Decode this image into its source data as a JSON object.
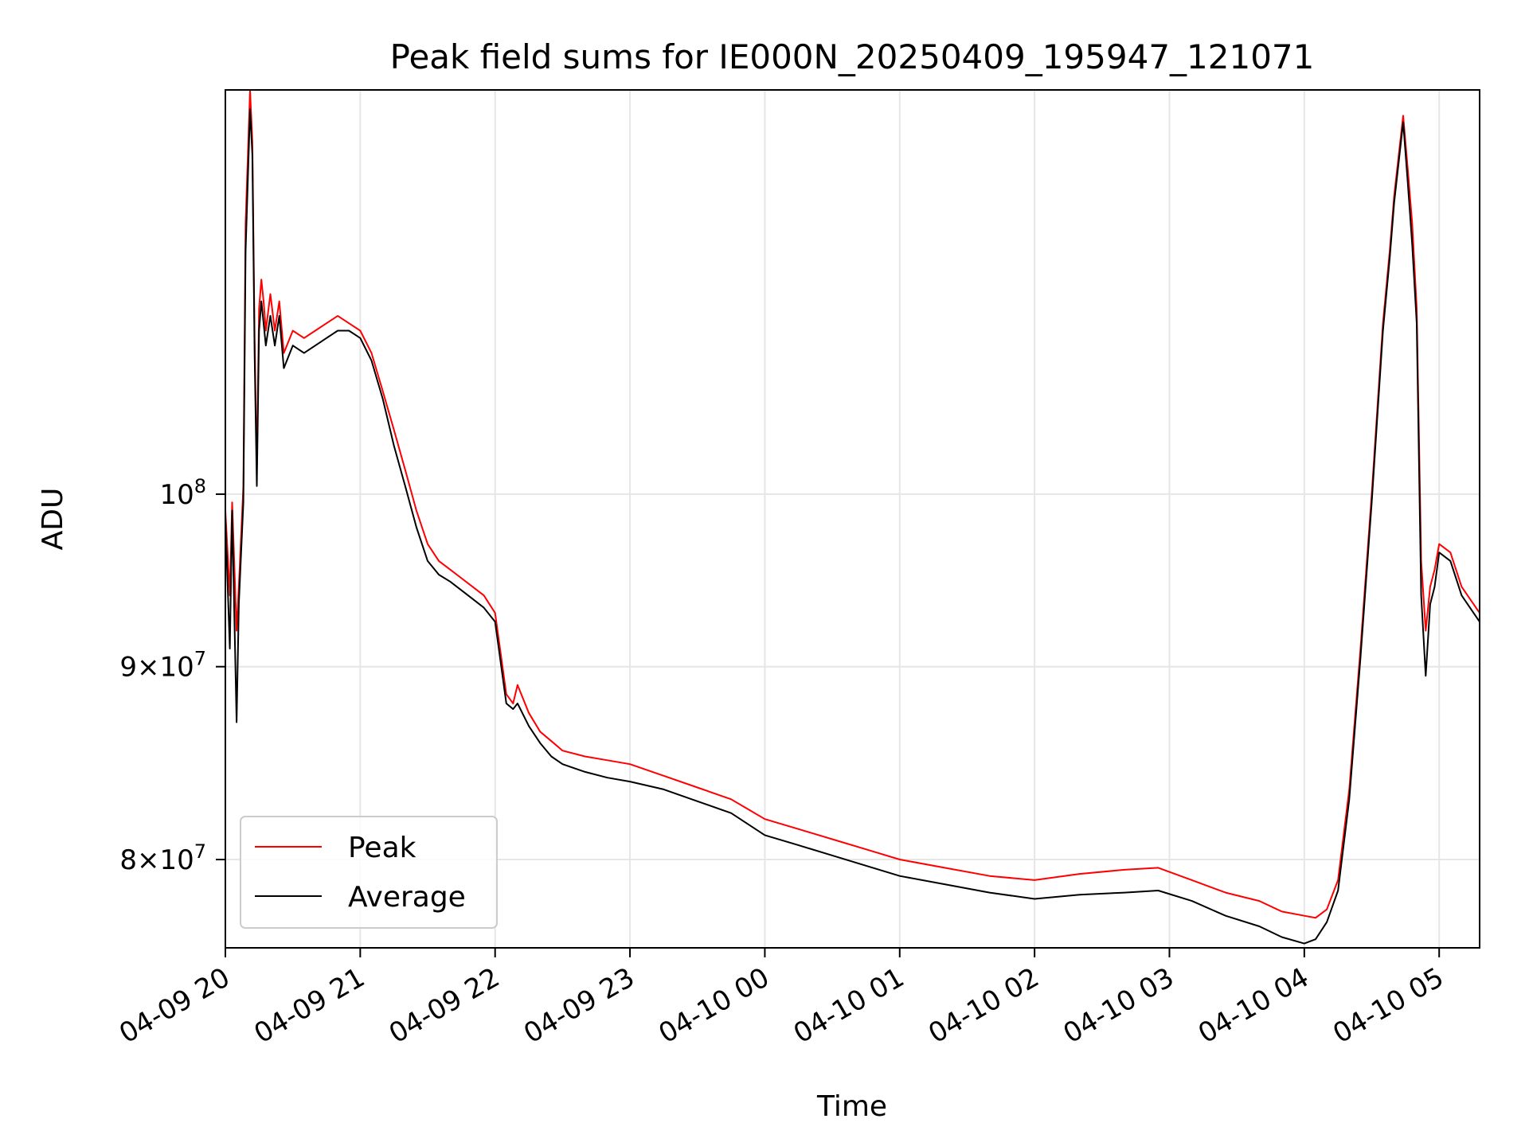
{
  "chart_data": {
    "type": "line",
    "title": "Peak field sums for IE000N_20250409_195947_121071",
    "xlabel": "Time",
    "ylabel": "ADU",
    "x_scale": "time",
    "y_scale": "log",
    "xlim": [
      "2025-04-09 20:00",
      "2025-04-10 05:18"
    ],
    "ylim": [
      75800000,
      128000000
    ],
    "grid": true,
    "legend_position": "lower-left",
    "x_ticks": [
      {
        "t": "2025-04-09 20:00",
        "label": "04-09 20"
      },
      {
        "t": "2025-04-09 21:00",
        "label": "04-09 21"
      },
      {
        "t": "2025-04-09 22:00",
        "label": "04-09 22"
      },
      {
        "t": "2025-04-09 23:00",
        "label": "04-09 23"
      },
      {
        "t": "2025-04-10 00:00",
        "label": "04-10 00"
      },
      {
        "t": "2025-04-10 01:00",
        "label": "04-10 01"
      },
      {
        "t": "2025-04-10 02:00",
        "label": "04-10 02"
      },
      {
        "t": "2025-04-10 03:00",
        "label": "04-10 03"
      },
      {
        "t": "2025-04-10 04:00",
        "label": "04-10 04"
      },
      {
        "t": "2025-04-10 05:00",
        "label": "04-10 05"
      }
    ],
    "y_ticks": [
      {
        "value": 80000000,
        "mantissa": "8",
        "base": "10",
        "exp": "7",
        "mult": "×"
      },
      {
        "value": 90000000,
        "mantissa": "9",
        "base": "10",
        "exp": "7",
        "mult": "×"
      },
      {
        "value": 100000000,
        "mantissa": "",
        "base": "10",
        "exp": "8",
        "mult": ""
      }
    ],
    "series": [
      {
        "name": "Peak",
        "color": "#ff0000",
        "x": [
          "2025-04-09 20:00",
          "2025-04-09 20:02",
          "2025-04-09 20:03",
          "2025-04-09 20:05",
          "2025-04-09 20:06",
          "2025-04-09 20:08",
          "2025-04-09 20:09",
          "2025-04-09 20:11",
          "2025-04-09 20:12",
          "2025-04-09 20:13",
          "2025-04-09 20:14",
          "2025-04-09 20:15",
          "2025-04-09 20:16",
          "2025-04-09 20:17",
          "2025-04-09 20:18",
          "2025-04-09 20:20",
          "2025-04-09 20:22",
          "2025-04-09 20:24",
          "2025-04-09 20:26",
          "2025-04-09 20:30",
          "2025-04-09 20:35",
          "2025-04-09 20:40",
          "2025-04-09 20:45",
          "2025-04-09 20:50",
          "2025-04-09 20:55",
          "2025-04-09 21:00",
          "2025-04-09 21:05",
          "2025-04-09 21:10",
          "2025-04-09 21:15",
          "2025-04-09 21:20",
          "2025-04-09 21:25",
          "2025-04-09 21:30",
          "2025-04-09 21:35",
          "2025-04-09 21:40",
          "2025-04-09 21:45",
          "2025-04-09 21:50",
          "2025-04-09 21:55",
          "2025-04-09 22:00",
          "2025-04-09 22:05",
          "2025-04-09 22:08",
          "2025-04-09 22:10",
          "2025-04-09 22:15",
          "2025-04-09 22:20",
          "2025-04-09 22:25",
          "2025-04-09 22:30",
          "2025-04-09 22:40",
          "2025-04-09 22:50",
          "2025-04-09 23:00",
          "2025-04-09 23:15",
          "2025-04-09 23:30",
          "2025-04-09 23:45",
          "2025-04-10 00:00",
          "2025-04-10 00:15",
          "2025-04-10 00:30",
          "2025-04-10 00:45",
          "2025-04-10 01:00",
          "2025-04-10 01:20",
          "2025-04-10 01:40",
          "2025-04-10 02:00",
          "2025-04-10 02:20",
          "2025-04-10 02:40",
          "2025-04-10 02:55",
          "2025-04-10 03:10",
          "2025-04-10 03:25",
          "2025-04-10 03:40",
          "2025-04-10 03:50",
          "2025-04-10 04:00",
          "2025-04-10 04:05",
          "2025-04-10 04:10",
          "2025-04-10 04:15",
          "2025-04-10 04:20",
          "2025-04-10 04:25",
          "2025-04-10 04:30",
          "2025-04-10 04:35",
          "2025-04-10 04:38",
          "2025-04-10 04:40",
          "2025-04-10 04:42",
          "2025-04-10 04:44",
          "2025-04-10 04:46",
          "2025-04-10 04:48",
          "2025-04-10 04:50",
          "2025-04-10 04:52",
          "2025-04-10 04:54",
          "2025-04-10 04:56",
          "2025-04-10 04:58",
          "2025-04-10 05:00",
          "2025-04-10 05:05",
          "2025-04-10 05:10",
          "2025-04-10 05:18"
        ],
        "y": [
          99000000,
          94000000,
          99500000,
          92000000,
          94500000,
          100500000,
          118000000,
          128000000,
          124000000,
          110000000,
          101500000,
          112000000,
          114000000,
          112500000,
          110500000,
          113000000,
          110500000,
          112500000,
          109000000,
          110500000,
          110000000,
          110500000,
          111000000,
          111500000,
          111000000,
          110500000,
          109000000,
          106500000,
          104000000,
          101500000,
          99000000,
          97000000,
          96000000,
          95500000,
          95000000,
          94500000,
          94000000,
          93000000,
          88500000,
          88000000,
          89000000,
          87500000,
          86500000,
          86000000,
          85500000,
          85200000,
          85000000,
          84800000,
          84200000,
          83600000,
          83000000,
          82000000,
          81500000,
          81000000,
          80500000,
          80000000,
          79600000,
          79200000,
          79000000,
          79300000,
          79500000,
          79600000,
          79000000,
          78400000,
          78000000,
          77500000,
          77300000,
          77200000,
          77600000,
          79000000,
          83500000,
          91000000,
          100000000,
          111000000,
          116000000,
          120000000,
          123000000,
          126000000,
          122000000,
          118000000,
          112000000,
          96000000,
          92000000,
          94500000,
          95500000,
          97000000,
          96500000,
          94500000,
          93000000
        ]
      },
      {
        "name": "Average",
        "color": "#000000",
        "x": [
          "2025-04-09 20:00",
          "2025-04-09 20:02",
          "2025-04-09 20:03",
          "2025-04-09 20:05",
          "2025-04-09 20:06",
          "2025-04-09 20:08",
          "2025-04-09 20:09",
          "2025-04-09 20:11",
          "2025-04-09 20:12",
          "2025-04-09 20:13",
          "2025-04-09 20:14",
          "2025-04-09 20:15",
          "2025-04-09 20:16",
          "2025-04-09 20:17",
          "2025-04-09 20:18",
          "2025-04-09 20:20",
          "2025-04-09 20:22",
          "2025-04-09 20:24",
          "2025-04-09 20:26",
          "2025-04-09 20:30",
          "2025-04-09 20:35",
          "2025-04-09 20:40",
          "2025-04-09 20:45",
          "2025-04-09 20:50",
          "2025-04-09 20:55",
          "2025-04-09 21:00",
          "2025-04-09 21:05",
          "2025-04-09 21:10",
          "2025-04-09 21:15",
          "2025-04-09 21:20",
          "2025-04-09 21:25",
          "2025-04-09 21:30",
          "2025-04-09 21:35",
          "2025-04-09 21:40",
          "2025-04-09 21:45",
          "2025-04-09 21:50",
          "2025-04-09 21:55",
          "2025-04-09 22:00",
          "2025-04-09 22:05",
          "2025-04-09 22:08",
          "2025-04-09 22:10",
          "2025-04-09 22:15",
          "2025-04-09 22:20",
          "2025-04-09 22:25",
          "2025-04-09 22:30",
          "2025-04-09 22:40",
          "2025-04-09 22:50",
          "2025-04-09 23:00",
          "2025-04-09 23:15",
          "2025-04-09 23:30",
          "2025-04-09 23:45",
          "2025-04-10 00:00",
          "2025-04-10 00:15",
          "2025-04-10 00:30",
          "2025-04-10 00:45",
          "2025-04-10 01:00",
          "2025-04-10 01:20",
          "2025-04-10 01:40",
          "2025-04-10 02:00",
          "2025-04-10 02:20",
          "2025-04-10 02:40",
          "2025-04-10 02:55",
          "2025-04-10 03:10",
          "2025-04-10 03:25",
          "2025-04-10 03:40",
          "2025-04-10 03:50",
          "2025-04-10 04:00",
          "2025-04-10 04:05",
          "2025-04-10 04:10",
          "2025-04-10 04:15",
          "2025-04-10 04:20",
          "2025-04-10 04:25",
          "2025-04-10 04:30",
          "2025-04-10 04:35",
          "2025-04-10 04:38",
          "2025-04-10 04:40",
          "2025-04-10 04:42",
          "2025-04-10 04:44",
          "2025-04-10 04:46",
          "2025-04-10 04:48",
          "2025-04-10 04:50",
          "2025-04-10 04:52",
          "2025-04-10 04:54",
          "2025-04-10 04:56",
          "2025-04-10 04:58",
          "2025-04-10 05:00",
          "2025-04-10 05:05",
          "2025-04-10 05:10",
          "2025-04-10 05:18"
        ],
        "y": [
          98500000,
          91000000,
          99000000,
          87000000,
          93500000,
          99500000,
          116000000,
          126500000,
          123000000,
          109000000,
          100500000,
          110500000,
          112500000,
          111000000,
          109500000,
          111500000,
          109500000,
          111500000,
          108000000,
          109500000,
          109000000,
          109500000,
          110000000,
          110500000,
          110500000,
          110000000,
          108500000,
          106000000,
          103000000,
          100500000,
          98000000,
          96000000,
          95200000,
          94800000,
          94300000,
          93800000,
          93300000,
          92500000,
          88000000,
          87700000,
          88000000,
          86800000,
          85900000,
          85200000,
          84800000,
          84400000,
          84100000,
          83900000,
          83500000,
          82900000,
          82300000,
          81200000,
          80700000,
          80200000,
          79700000,
          79200000,
          78800000,
          78400000,
          78100000,
          78300000,
          78400000,
          78500000,
          78000000,
          77300000,
          76800000,
          76300000,
          76000000,
          76200000,
          77000000,
          78500000,
          83000000,
          90500000,
          99500000,
          110500000,
          115500000,
          119500000,
          122500000,
          125500000,
          121000000,
          116500000,
          111000000,
          94000000,
          89500000,
          93500000,
          94500000,
          96500000,
          96000000,
          94000000,
          92500000
        ]
      }
    ]
  }
}
